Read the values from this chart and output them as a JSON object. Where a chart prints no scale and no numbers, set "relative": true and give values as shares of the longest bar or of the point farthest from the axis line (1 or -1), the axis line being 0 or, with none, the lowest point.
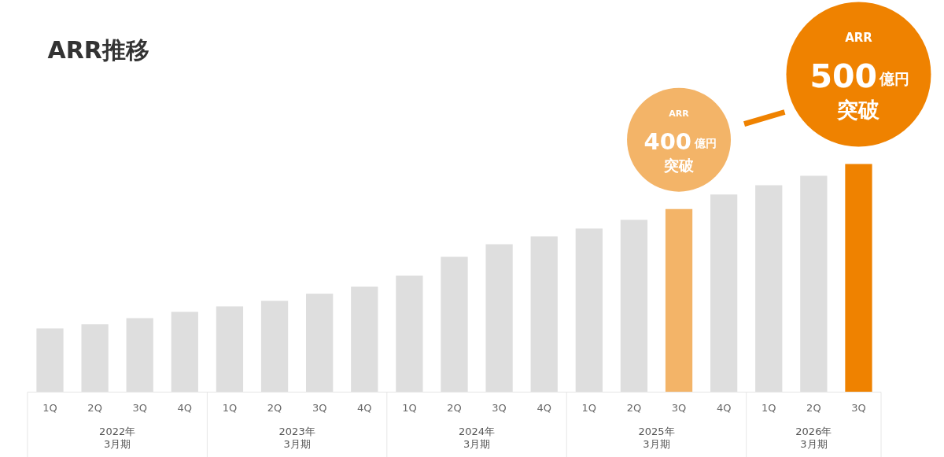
{
  "chart_data": {
    "type": "bar",
    "title": "ARR推移",
    "relative": true,
    "categories": [
      "1Q",
      "2Q",
      "3Q",
      "4Q",
      "1Q",
      "2Q",
      "3Q",
      "4Q",
      "1Q",
      "2Q",
      "3Q",
      "4Q",
      "1Q",
      "2Q",
      "3Q",
      "4Q",
      "1Q",
      "2Q",
      "3Q"
    ],
    "values": [
      0.279,
      0.297,
      0.324,
      0.352,
      0.376,
      0.4,
      0.431,
      0.462,
      0.51,
      0.593,
      0.648,
      0.683,
      0.717,
      0.755,
      0.803,
      0.866,
      0.907,
      0.948,
      1
    ],
    "colors": [
      "#dedede",
      "#dedede",
      "#dedede",
      "#dedede",
      "#dedede",
      "#dedede",
      "#dedede",
      "#dedede",
      "#dedede",
      "#dedede",
      "#dedede",
      "#dedede",
      "#dedede",
      "#dedede",
      "#f3b468",
      "#dedede",
      "#dedede",
      "#dedede",
      "#ef8200"
    ],
    "annotations": [
      {
        "text": "ARR\n400億円突破",
        "y": 0.803
      },
      {
        "text": "ARR\n500億円突破",
        "y": 1
      },
      "2022年\n3月期",
      "2023年\n3月期",
      "2024年\n3月期",
      "2025年\n3月期",
      "2026年\n3月期"
    ]
  }
}
